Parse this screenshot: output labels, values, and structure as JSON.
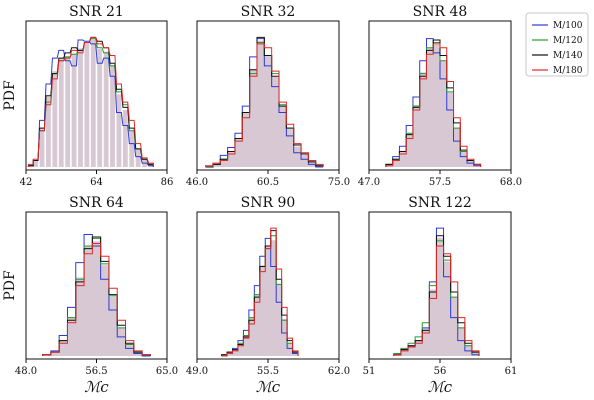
{
  "colors": {
    "fill": "#c9b5c4",
    "series": [
      "#2b3bd8",
      "#2a9a2a",
      "#111111",
      "#e02828"
    ]
  },
  "legend": {
    "placement": "outside-right-top",
    "entries": [
      "M/100",
      "M/120",
      "M/140",
      "M/180"
    ]
  },
  "labels": {
    "ylabel": "PDF",
    "xlabel": "ℳc"
  },
  "chart_data": [
    {
      "type": "histogram",
      "title": "SNR 21",
      "xlim": [
        42,
        86
      ],
      "xticks": [
        42,
        64,
        86
      ],
      "bins": [
        [
          43.5,
          0.01,
          0.01,
          0.01,
          0.02
        ],
        [
          45,
          0.05,
          0.05,
          0.05,
          0.06
        ],
        [
          47,
          0.36,
          0.28,
          0.3,
          0.28
        ],
        [
          49,
          0.64,
          0.5,
          0.55,
          0.48
        ],
        [
          51,
          0.84,
          0.72,
          0.72,
          0.68
        ],
        [
          53,
          0.9,
          0.82,
          0.84,
          0.82
        ],
        [
          55,
          0.82,
          0.85,
          0.88,
          0.84
        ],
        [
          57,
          0.78,
          0.87,
          0.92,
          0.9
        ],
        [
          59,
          0.98,
          0.9,
          0.9,
          0.88
        ],
        [
          61,
          0.97,
          0.96,
          0.96,
          0.96
        ],
        [
          63,
          0.95,
          0.99,
          1.0,
          1.0
        ],
        [
          65,
          0.8,
          0.92,
          0.97,
          0.95
        ],
        [
          67,
          0.84,
          0.88,
          0.92,
          0.92
        ],
        [
          69,
          0.7,
          0.78,
          0.8,
          0.86
        ],
        [
          71,
          0.42,
          0.58,
          0.6,
          0.64
        ],
        [
          73,
          0.32,
          0.48,
          0.46,
          0.5
        ],
        [
          75,
          0.18,
          0.28,
          0.3,
          0.36
        ],
        [
          77,
          0.08,
          0.14,
          0.14,
          0.18
        ],
        [
          79,
          0.03,
          0.06,
          0.06,
          0.07
        ],
        [
          81,
          0.01,
          0.02,
          0.02,
          0.03
        ]
      ]
    },
    {
      "type": "histogram",
      "title": "SNR 32",
      "xlim": [
        46,
        75
      ],
      "xticks": [
        46.0,
        60.5,
        75.0
      ],
      "bins": [
        [
          48.5,
          0.0,
          0.0,
          0.0,
          0.01
        ],
        [
          50,
          0.02,
          0.02,
          0.02,
          0.03
        ],
        [
          51.5,
          0.09,
          0.06,
          0.06,
          0.05
        ],
        [
          53,
          0.15,
          0.12,
          0.12,
          0.1
        ],
        [
          54.5,
          0.26,
          0.22,
          0.22,
          0.2
        ],
        [
          56,
          0.47,
          0.42,
          0.42,
          0.38
        ],
        [
          57.5,
          0.85,
          0.72,
          0.75,
          0.7
        ],
        [
          59,
          0.99,
          0.96,
          1.0,
          0.95
        ],
        [
          60.5,
          0.78,
          0.86,
          0.86,
          0.92
        ],
        [
          62,
          0.62,
          0.72,
          0.7,
          0.74
        ],
        [
          63.5,
          0.42,
          0.48,
          0.47,
          0.5
        ],
        [
          65,
          0.24,
          0.3,
          0.3,
          0.33
        ],
        [
          66.5,
          0.11,
          0.17,
          0.17,
          0.18
        ],
        [
          68,
          0.06,
          0.1,
          0.1,
          0.11
        ],
        [
          69.5,
          0.02,
          0.04,
          0.04,
          0.05
        ],
        [
          71,
          0.0,
          0.01,
          0.01,
          0.02
        ]
      ]
    },
    {
      "type": "histogram",
      "title": "SNR 48",
      "xlim": [
        47,
        68
      ],
      "xticks": [
        47.0,
        57.5,
        68.0
      ],
      "bins": [
        [
          50,
          0.02,
          0.02,
          0.02,
          0.01
        ],
        [
          51,
          0.08,
          0.06,
          0.06,
          0.05
        ],
        [
          52,
          0.16,
          0.12,
          0.12,
          0.1
        ],
        [
          53,
          0.32,
          0.26,
          0.25,
          0.22
        ],
        [
          54,
          0.54,
          0.47,
          0.46,
          0.44
        ],
        [
          55,
          0.82,
          0.72,
          0.7,
          0.68
        ],
        [
          56,
          0.99,
          0.92,
          0.9,
          0.87
        ],
        [
          57,
          0.88,
          0.96,
          0.98,
          0.95
        ],
        [
          58,
          0.68,
          0.82,
          0.86,
          0.92
        ],
        [
          59,
          0.44,
          0.58,
          0.61,
          0.66
        ],
        [
          60,
          0.2,
          0.3,
          0.34,
          0.38
        ],
        [
          61,
          0.08,
          0.12,
          0.13,
          0.16
        ],
        [
          62,
          0.03,
          0.05,
          0.05,
          0.06
        ],
        [
          63,
          0.01,
          0.02,
          0.02,
          0.02
        ]
      ]
    },
    {
      "type": "histogram",
      "title": "SNR 64",
      "xlim": [
        48,
        65
      ],
      "xticks": [
        48.0,
        56.5,
        65.0
      ],
      "bins": [
        [
          50.5,
          0.01,
          0.01,
          0.01,
          0.01
        ],
        [
          51.5,
          0.04,
          0.03,
          0.03,
          0.03
        ],
        [
          52.5,
          0.16,
          0.12,
          0.12,
          0.1
        ],
        [
          53.5,
          0.38,
          0.3,
          0.28,
          0.26
        ],
        [
          54.5,
          0.73,
          0.6,
          0.58,
          0.55
        ],
        [
          55.5,
          0.95,
          0.86,
          0.84,
          0.8
        ],
        [
          56.5,
          0.86,
          0.92,
          0.93,
          0.88
        ],
        [
          57.5,
          0.6,
          0.72,
          0.74,
          0.78
        ],
        [
          58.5,
          0.36,
          0.47,
          0.48,
          0.53
        ],
        [
          59.5,
          0.15,
          0.22,
          0.24,
          0.28
        ],
        [
          60.5,
          0.06,
          0.09,
          0.1,
          0.12
        ],
        [
          61.5,
          0.02,
          0.03,
          0.03,
          0.04
        ],
        [
          62.5,
          0.0,
          0.01,
          0.01,
          0.01
        ]
      ]
    },
    {
      "type": "histogram",
      "title": "SNR 90",
      "xlim": [
        49,
        62
      ],
      "xticks": [
        49.0,
        55.5,
        62.0
      ],
      "bins": [
        [
          51.5,
          0.0,
          0.01,
          0.01,
          0.0
        ],
        [
          52,
          0.03,
          0.03,
          0.03,
          0.02
        ],
        [
          52.5,
          0.06,
          0.05,
          0.05,
          0.04
        ],
        [
          53,
          0.12,
          0.1,
          0.09,
          0.08
        ],
        [
          53.5,
          0.2,
          0.16,
          0.15,
          0.14
        ],
        [
          54,
          0.36,
          0.3,
          0.28,
          0.25
        ],
        [
          54.5,
          0.55,
          0.48,
          0.46,
          0.42
        ],
        [
          55,
          0.78,
          0.7,
          0.7,
          0.66
        ],
        [
          55.5,
          0.92,
          0.84,
          0.86,
          0.84
        ],
        [
          56,
          0.7,
          0.94,
          0.98,
          1.0
        ],
        [
          56.5,
          0.42,
          0.56,
          0.6,
          0.68
        ],
        [
          57,
          0.18,
          0.28,
          0.32,
          0.38
        ],
        [
          57.5,
          0.06,
          0.1,
          0.12,
          0.14
        ],
        [
          58,
          0.02,
          0.03,
          0.03,
          0.04
        ]
      ]
    },
    {
      "type": "histogram",
      "title": "SNR 122",
      "xlim": [
        51,
        61
      ],
      "xticks": [
        51,
        56,
        61
      ],
      "bins": [
        [
          53,
          0.01,
          0.02,
          0.01,
          0.01
        ],
        [
          53.5,
          0.05,
          0.06,
          0.05,
          0.04
        ],
        [
          54,
          0.08,
          0.1,
          0.08,
          0.07
        ],
        [
          54.5,
          0.12,
          0.15,
          0.12,
          0.1
        ],
        [
          55,
          0.22,
          0.26,
          0.2,
          0.18
        ],
        [
          55.5,
          0.58,
          0.55,
          0.5,
          0.45
        ],
        [
          56,
          1.0,
          0.9,
          0.94,
          0.86
        ],
        [
          56.5,
          0.62,
          0.75,
          0.78,
          0.8
        ],
        [
          57,
          0.3,
          0.46,
          0.5,
          0.58
        ],
        [
          57.5,
          0.12,
          0.22,
          0.26,
          0.3
        ],
        [
          58,
          0.04,
          0.08,
          0.1,
          0.12
        ],
        [
          58.5,
          0.01,
          0.03,
          0.03,
          0.04
        ]
      ]
    }
  ]
}
